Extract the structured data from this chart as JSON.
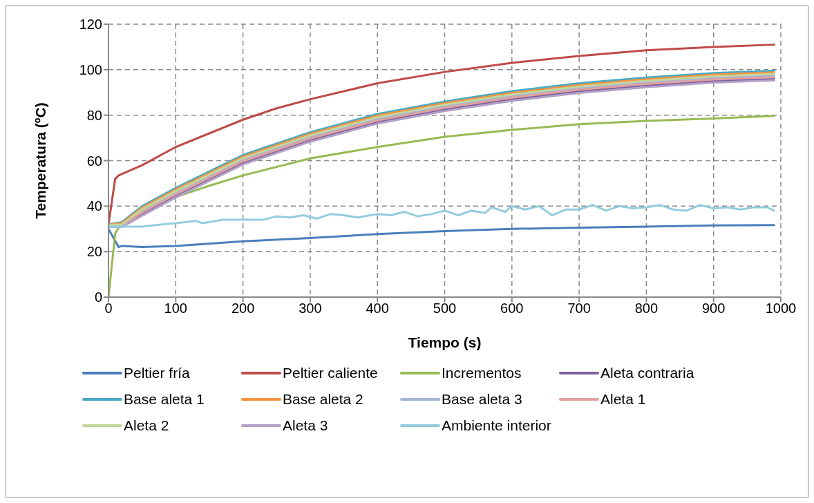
{
  "chart_data": {
    "type": "line",
    "xlabel": "Tiempo (s)",
    "ylabel": "Temperatura  (ºC)",
    "xlim": [
      0,
      1000
    ],
    "xticks": [
      0,
      100,
      200,
      300,
      400,
      500,
      600,
      700,
      800,
      900,
      1000
    ],
    "ylim": [
      0,
      120
    ],
    "yticks": [
      0,
      20,
      40,
      60,
      80,
      100,
      120
    ],
    "grid": true,
    "legend": "bottom",
    "marker": "none",
    "line_style": "solid",
    "series": [
      {
        "name": "Peltier fría",
        "color": "#4a7ebb",
        "x": [
          0,
          15,
          20,
          50,
          100,
          200,
          300,
          400,
          500,
          600,
          700,
          800,
          900,
          990
        ],
        "values": [
          30,
          22,
          22.5,
          22,
          22.5,
          24.5,
          26,
          27.7,
          29,
          30,
          30.5,
          31,
          31.5,
          31.7
        ]
      },
      {
        "name": "Peltier caliente",
        "color": "#be4b48",
        "x": [
          0,
          10,
          15,
          50,
          100,
          150,
          200,
          250,
          300,
          400,
          500,
          600,
          700,
          800,
          900,
          990
        ],
        "values": [
          32,
          52,
          53.5,
          58,
          66,
          72,
          78,
          83,
          87,
          94,
          99,
          103,
          106,
          108.5,
          110,
          111
        ]
      },
      {
        "name": "Incrementos",
        "color": "#98b954",
        "x": [
          0,
          10,
          20,
          50,
          100,
          150,
          200,
          300,
          400,
          500,
          600,
          700,
          800,
          900,
          990
        ],
        "values": [
          0,
          28,
          33,
          38,
          44,
          49,
          53.5,
          61,
          66,
          70.5,
          73.5,
          76,
          77.5,
          78.5,
          79.7
        ]
      },
      {
        "name": "Aleta contraria",
        "color": "#7d60a0",
        "x": [
          0,
          20,
          50,
          100,
          200,
          300,
          400,
          500,
          600,
          700,
          800,
          900,
          990
        ],
        "values": [
          31,
          31.1,
          36.5,
          44.5,
          59,
          69,
          77,
          82.5,
          87,
          90.5,
          93,
          95,
          96
        ]
      },
      {
        "name": "Base aleta 1",
        "color": "#46aac5",
        "x": [
          0,
          20,
          50,
          100,
          200,
          300,
          400,
          500,
          600,
          700,
          800,
          900,
          990
        ],
        "values": [
          32,
          33,
          40,
          48,
          62.5,
          72.5,
          80.5,
          86,
          90.5,
          94,
          96.5,
          98.5,
          99.5
        ]
      },
      {
        "name": "Base aleta 2",
        "color": "#f69240",
        "x": [
          0,
          20,
          50,
          100,
          200,
          300,
          400,
          500,
          600,
          700,
          800,
          900,
          990
        ],
        "values": [
          31.8,
          32.5,
          39.3,
          47.3,
          61.8,
          71.8,
          79.8,
          85.3,
          89.8,
          93.3,
          95.8,
          97.8,
          98.8
        ]
      },
      {
        "name": "Base aleta 3",
        "color": "#a5b6d9",
        "x": [
          0,
          20,
          50,
          100,
          200,
          300,
          400,
          500,
          600,
          700,
          800,
          900,
          990
        ],
        "values": [
          31.4,
          31.7,
          37.9,
          45.9,
          60.4,
          70.4,
          78.4,
          83.9,
          88.4,
          91.9,
          94.4,
          96.4,
          97.4
        ]
      },
      {
        "name": "Aleta 1",
        "color": "#e1a09e",
        "x": [
          0,
          20,
          50,
          100,
          200,
          300,
          400,
          500,
          600,
          700,
          800,
          900,
          990
        ],
        "values": [
          31.2,
          31.4,
          37.2,
          45.2,
          59.7,
          69.7,
          77.7,
          83.2,
          87.7,
          91.2,
          93.7,
          95.7,
          96.7
        ]
      },
      {
        "name": "Aleta 2",
        "color": "#c3d69b",
        "x": [
          0,
          20,
          50,
          100,
          200,
          300,
          400,
          500,
          600,
          700,
          800,
          900,
          990
        ],
        "values": [
          31.6,
          32,
          38.6,
          46.6,
          61.1,
          71.1,
          79.1,
          84.6,
          89.1,
          92.6,
          95.1,
          97.1,
          98.1
        ]
      },
      {
        "name": "Aleta 3",
        "color": "#b3a2c7",
        "x": [
          0,
          20,
          50,
          100,
          200,
          300,
          400,
          500,
          600,
          700,
          800,
          900,
          990
        ],
        "values": [
          30.8,
          30.8,
          35.8,
          43.8,
          58.3,
          68.3,
          76.3,
          81.8,
          86.3,
          89.8,
          92.3,
          94.3,
          95.3
        ]
      },
      {
        "name": "Ambiente interior",
        "color": "#93cddd",
        "x": [
          0,
          50,
          80,
          100,
          130,
          140,
          170,
          200,
          230,
          250,
          270,
          290,
          310,
          330,
          350,
          370,
          400,
          420,
          440,
          460,
          480,
          500,
          520,
          540,
          560,
          570,
          590,
          600,
          620,
          640,
          660,
          680,
          700,
          720,
          740,
          760,
          780,
          800,
          820,
          840,
          860,
          880,
          900,
          920,
          940,
          960,
          980,
          990
        ],
        "values": [
          31,
          31,
          32,
          32.5,
          33.5,
          32.5,
          34,
          34,
          34,
          35.5,
          35,
          36,
          34.5,
          36.5,
          36,
          35,
          36.5,
          36,
          37.5,
          35.5,
          36.5,
          38,
          36,
          38,
          37,
          39.5,
          37.5,
          40,
          38.5,
          40,
          36,
          38.5,
          38.5,
          40.5,
          38,
          40,
          39,
          39.5,
          40.5,
          38.5,
          38,
          40.5,
          39,
          39.5,
          38.5,
          39.5,
          39.5,
          38
        ]
      }
    ]
  }
}
